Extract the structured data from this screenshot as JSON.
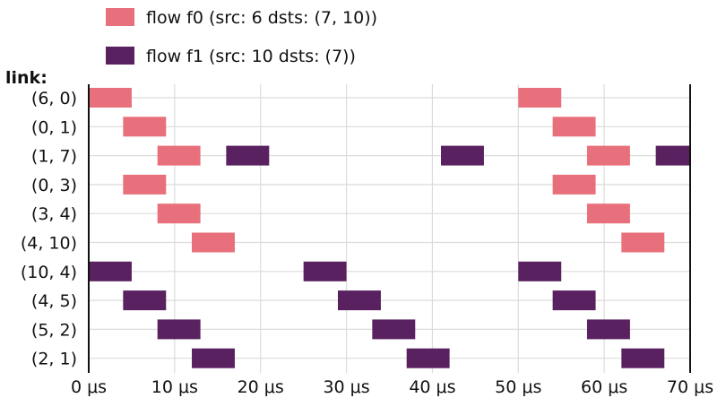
{
  "chart_data": {
    "type": "gantt",
    "ylabel": "link:",
    "x_unit": "μs",
    "xlim": [
      0,
      70
    ],
    "x_ticks": [
      0,
      10,
      20,
      30,
      40,
      50,
      60,
      70
    ],
    "x_tick_labels": [
      "0 μs",
      "10 μs",
      "20 μs",
      "30 μs",
      "40 μs",
      "50 μs",
      "60 μs",
      "70 μs"
    ],
    "links": [
      "(6, 0)",
      "(0, 1)",
      "(1, 7)",
      "(0, 3)",
      "(3, 4)",
      "(4, 10)",
      "(10, 4)",
      "(4, 5)",
      "(5, 2)",
      "(2, 1)"
    ],
    "grid": true,
    "legend_position": "top",
    "series": [
      {
        "name": "flow f0 (src: 6 dsts: (7, 10))",
        "color": "#e8707c",
        "intervals": [
          {
            "link": "(6, 0)",
            "start": 0,
            "end": 5
          },
          {
            "link": "(0, 1)",
            "start": 4,
            "end": 9
          },
          {
            "link": "(1, 7)",
            "start": 8,
            "end": 13
          },
          {
            "link": "(0, 3)",
            "start": 4,
            "end": 9
          },
          {
            "link": "(3, 4)",
            "start": 8,
            "end": 13
          },
          {
            "link": "(4, 10)",
            "start": 12,
            "end": 17
          },
          {
            "link": "(6, 0)",
            "start": 50,
            "end": 55
          },
          {
            "link": "(0, 1)",
            "start": 54,
            "end": 59
          },
          {
            "link": "(1, 7)",
            "start": 58,
            "end": 63
          },
          {
            "link": "(0, 3)",
            "start": 54,
            "end": 59
          },
          {
            "link": "(3, 4)",
            "start": 58,
            "end": 63
          },
          {
            "link": "(4, 10)",
            "start": 62,
            "end": 67
          }
        ]
      },
      {
        "name": "flow f1 (src: 10 dsts: (7))",
        "color": "#5a2160",
        "intervals": [
          {
            "link": "(10, 4)",
            "start": 0,
            "end": 5
          },
          {
            "link": "(4, 5)",
            "start": 4,
            "end": 9
          },
          {
            "link": "(5, 2)",
            "start": 8,
            "end": 13
          },
          {
            "link": "(2, 1)",
            "start": 12,
            "end": 17
          },
          {
            "link": "(1, 7)",
            "start": 16,
            "end": 21
          },
          {
            "link": "(10, 4)",
            "start": 25,
            "end": 30
          },
          {
            "link": "(4, 5)",
            "start": 29,
            "end": 34
          },
          {
            "link": "(5, 2)",
            "start": 33,
            "end": 38
          },
          {
            "link": "(2, 1)",
            "start": 37,
            "end": 42
          },
          {
            "link": "(1, 7)",
            "start": 41,
            "end": 46
          },
          {
            "link": "(10, 4)",
            "start": 50,
            "end": 55
          },
          {
            "link": "(4, 5)",
            "start": 54,
            "end": 59
          },
          {
            "link": "(5, 2)",
            "start": 58,
            "end": 63
          },
          {
            "link": "(2, 1)",
            "start": 62,
            "end": 67
          },
          {
            "link": "(1, 7)",
            "start": 66,
            "end": 71
          }
        ]
      }
    ]
  }
}
